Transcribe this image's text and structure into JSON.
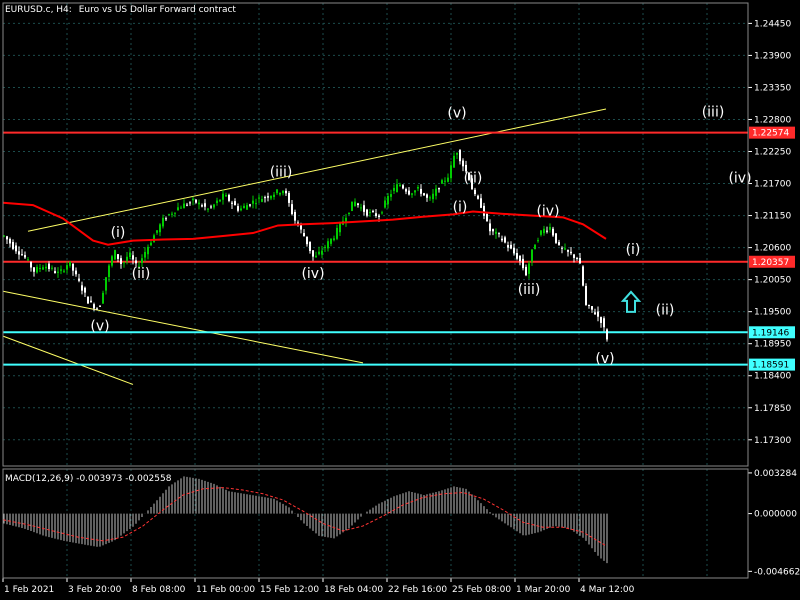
{
  "header": {
    "symbol": "EURUSD.c, H4:",
    "description": "Euro vs US Dollar Forward contract"
  },
  "colors": {
    "background": "#000000",
    "bull_candle": "#00cc00",
    "bear_candle": "#ffffff",
    "moving_average": "#ff0000",
    "resistance_line": "#ff2a2a",
    "support_line": "#40ffff",
    "trend_line": "#ffff66",
    "macd_hist": "#c0c0c0",
    "macd_signal": "#ff3333",
    "arrow": "#40e0e0",
    "grid": "#1c4c4c"
  },
  "chart_data": [
    {
      "type": "candlestick",
      "title": "EURUSD.c, H4: Euro vs US Dollar Forward contract",
      "ylim": [
        1.1685,
        1.248
      ],
      "y_ticks": [
        "1.24450",
        "1.23900",
        "1.23350",
        "1.22800",
        "1.22250",
        "1.21700",
        "1.21150",
        "1.20600",
        "1.20050",
        "1.19500",
        "1.18950",
        "1.18400",
        "1.17850",
        "1.17300"
      ],
      "x_ticks": [
        "1 Feb 2021",
        "3 Feb 20:00",
        "8 Feb 08:00",
        "11 Feb 00:00",
        "15 Feb 12:00",
        "18 Feb 04:00",
        "22 Feb 16:00",
        "25 Feb 08:00",
        "1 Mar 20:00",
        "4 Mar 12:00"
      ],
      "price_path": [
        [
          0,
          1.208
        ],
        [
          10,
          1.206
        ],
        [
          20,
          1.2045
        ],
        [
          30,
          1.202
        ],
        [
          40,
          1.203
        ],
        [
          55,
          1.2015
        ],
        [
          65,
          1.2035
        ],
        [
          75,
          1.2
        ],
        [
          85,
          1.1965
        ],
        [
          95,
          1.1955
        ],
        [
          102,
          1.201
        ],
        [
          110,
          1.2055
        ],
        [
          118,
          1.203
        ],
        [
          125,
          1.205
        ],
        [
          133,
          1.2025
        ],
        [
          140,
          1.205
        ],
        [
          148,
          1.2075
        ],
        [
          160,
          1.211
        ],
        [
          175,
          1.213
        ],
        [
          190,
          1.214
        ],
        [
          205,
          1.2125
        ],
        [
          220,
          1.215
        ],
        [
          235,
          1.2125
        ],
        [
          250,
          1.214
        ],
        [
          265,
          1.215
        ],
        [
          280,
          1.216
        ],
        [
          290,
          1.211
        ],
        [
          300,
          1.208
        ],
        [
          310,
          1.204
        ],
        [
          320,
          1.206
        ],
        [
          330,
          1.208
        ],
        [
          340,
          1.211
        ],
        [
          350,
          1.214
        ],
        [
          362,
          1.212
        ],
        [
          375,
          1.2115
        ],
        [
          385,
          1.215
        ],
        [
          395,
          1.217
        ],
        [
          405,
          1.2155
        ],
        [
          415,
          1.216
        ],
        [
          425,
          1.214
        ],
        [
          435,
          1.2165
        ],
        [
          445,
          1.2185
        ],
        [
          452,
          1.223
        ],
        [
          458,
          1.2205
        ],
        [
          465,
          1.218
        ],
        [
          470,
          1.215
        ],
        [
          478,
          1.213
        ],
        [
          485,
          1.209
        ],
        [
          495,
          1.208
        ],
        [
          505,
          1.206
        ],
        [
          515,
          1.204
        ],
        [
          522,
          1.2015
        ],
        [
          530,
          1.2065
        ],
        [
          538,
          1.209
        ],
        [
          546,
          1.2095
        ],
        [
          555,
          1.206
        ],
        [
          565,
          1.205
        ],
        [
          575,
          1.204
        ],
        [
          582,
          1.196
        ],
        [
          590,
          1.195
        ],
        [
          597,
          1.1935
        ],
        [
          603,
          1.1905
        ]
      ],
      "moving_average": [
        [
          0,
          1.2137
        ],
        [
          30,
          1.2133
        ],
        [
          60,
          1.211
        ],
        [
          90,
          1.2072
        ],
        [
          105,
          1.2065
        ],
        [
          130,
          1.2072
        ],
        [
          160,
          1.2074
        ],
        [
          190,
          1.2075
        ],
        [
          220,
          1.208
        ],
        [
          250,
          1.2085
        ],
        [
          275,
          1.2098
        ],
        [
          300,
          1.21
        ],
        [
          330,
          1.2102
        ],
        [
          360,
          1.2105
        ],
        [
          390,
          1.2108
        ],
        [
          420,
          1.2113
        ],
        [
          450,
          1.2117
        ],
        [
          470,
          1.2122
        ],
        [
          500,
          1.2118
        ],
        [
          530,
          1.2115
        ],
        [
          560,
          1.2112
        ],
        [
          580,
          1.21
        ],
        [
          603,
          1.2075
        ]
      ],
      "horizontal_levels": [
        {
          "price": 1.22574,
          "label": "1.22574",
          "kind": "resistance"
        },
        {
          "price": 1.20357,
          "label": "1.20357",
          "kind": "resistance"
        },
        {
          "price": 1.19146,
          "label": "1.19146",
          "kind": "support"
        },
        {
          "price": 1.18591,
          "label": "1.18591",
          "kind": "support"
        }
      ],
      "trend_lines": [
        {
          "p1": [
            25,
            1.2088
          ],
          "p2": [
            603,
            1.2298
          ]
        },
        {
          "p1": [
            0,
            1.1985
          ],
          "p2": [
            360,
            1.1862
          ]
        },
        {
          "p1": [
            0,
            1.1908
          ],
          "p2": [
            130,
            1.1825
          ]
        }
      ],
      "wave_labels": [
        {
          "text": "(i)",
          "x": 115,
          "price": 1.2078
        },
        {
          "text": "(ii)",
          "x": 138,
          "price": 1.2008
        },
        {
          "text": "(iii)",
          "x": 278,
          "price": 1.2182
        },
        {
          "text": "(iv)",
          "x": 310,
          "price": 1.2008
        },
        {
          "text": "(v)",
          "x": 97,
          "price": 1.1918
        },
        {
          "text": "(v)",
          "x": 454,
          "price": 1.2283
        },
        {
          "text": "(ii)",
          "x": 470,
          "price": 1.2172
        },
        {
          "text": "(i)",
          "x": 457,
          "price": 1.2122
        },
        {
          "text": "(iv)",
          "x": 545,
          "price": 1.2115
        },
        {
          "text": "(iii)",
          "x": 526,
          "price": 1.198
        },
        {
          "text": "(v)",
          "x": 602,
          "price": 1.1862
        },
        {
          "text": "(i)",
          "x": 630,
          "price": 1.2049
        },
        {
          "text": "(ii)",
          "x": 662,
          "price": 1.1945
        },
        {
          "text": "(iii)",
          "x": 710,
          "price": 1.2285
        },
        {
          "text": "(iv)",
          "x": 737,
          "price": 1.2172
        }
      ],
      "arrow": {
        "x": 628,
        "price": 1.1965,
        "direction": "up"
      }
    },
    {
      "type": "macd",
      "label": "MACD(12,26,9) -0.003973 -0.002558",
      "ylim": [
        -0.0052,
        0.0036
      ],
      "y_ticks": [
        "0.003284",
        "0.000000",
        "-0.004662"
      ],
      "histogram": [
        [
          0,
          -0.0008
        ],
        [
          20,
          -0.0012
        ],
        [
          40,
          -0.0018
        ],
        [
          60,
          -0.0022
        ],
        [
          80,
          -0.0025
        ],
        [
          95,
          -0.0027
        ],
        [
          110,
          -0.0022
        ],
        [
          130,
          -0.001
        ],
        [
          150,
          0.0008
        ],
        [
          165,
          0.0022
        ],
        [
          180,
          0.003
        ],
        [
          195,
          0.0028
        ],
        [
          210,
          0.0024
        ],
        [
          225,
          0.0018
        ],
        [
          240,
          0.0016
        ],
        [
          255,
          0.0014
        ],
        [
          270,
          0.0012
        ],
        [
          285,
          0.0005
        ],
        [
          300,
          -0.0008
        ],
        [
          315,
          -0.0018
        ],
        [
          330,
          -0.002
        ],
        [
          345,
          -0.0012
        ],
        [
          360,
          0.0
        ],
        [
          375,
          0.0008
        ],
        [
          390,
          0.0014
        ],
        [
          405,
          0.0018
        ],
        [
          420,
          0.0015
        ],
        [
          435,
          0.0018
        ],
        [
          450,
          0.0022
        ],
        [
          462,
          0.002
        ],
        [
          475,
          0.001
        ],
        [
          490,
          -0.0002
        ],
        [
          505,
          -0.001
        ],
        [
          520,
          -0.0018
        ],
        [
          535,
          -0.0015
        ],
        [
          550,
          -0.001
        ],
        [
          565,
          -0.0012
        ],
        [
          580,
          -0.002
        ],
        [
          595,
          -0.0035
        ],
        [
          603,
          -0.004
        ]
      ],
      "signal": [
        [
          0,
          -0.0005
        ],
        [
          25,
          -0.0009
        ],
        [
          50,
          -0.0014
        ],
        [
          75,
          -0.0019
        ],
        [
          100,
          -0.0022
        ],
        [
          120,
          -0.0019
        ],
        [
          140,
          -0.001
        ],
        [
          160,
          0.0003
        ],
        [
          180,
          0.0015
        ],
        [
          200,
          0.002
        ],
        [
          220,
          0.0021
        ],
        [
          240,
          0.0019
        ],
        [
          260,
          0.0016
        ],
        [
          280,
          0.0011
        ],
        [
          300,
          0.0002
        ],
        [
          320,
          -0.0008
        ],
        [
          340,
          -0.0014
        ],
        [
          360,
          -0.001
        ],
        [
          380,
          -0.0002
        ],
        [
          400,
          0.0007
        ],
        [
          420,
          0.0013
        ],
        [
          440,
          0.0016
        ],
        [
          460,
          0.0017
        ],
        [
          480,
          0.0012
        ],
        [
          500,
          0.0003
        ],
        [
          520,
          -0.0007
        ],
        [
          540,
          -0.0011
        ],
        [
          560,
          -0.0011
        ],
        [
          580,
          -0.0015
        ],
        [
          603,
          -0.0026
        ]
      ]
    }
  ]
}
